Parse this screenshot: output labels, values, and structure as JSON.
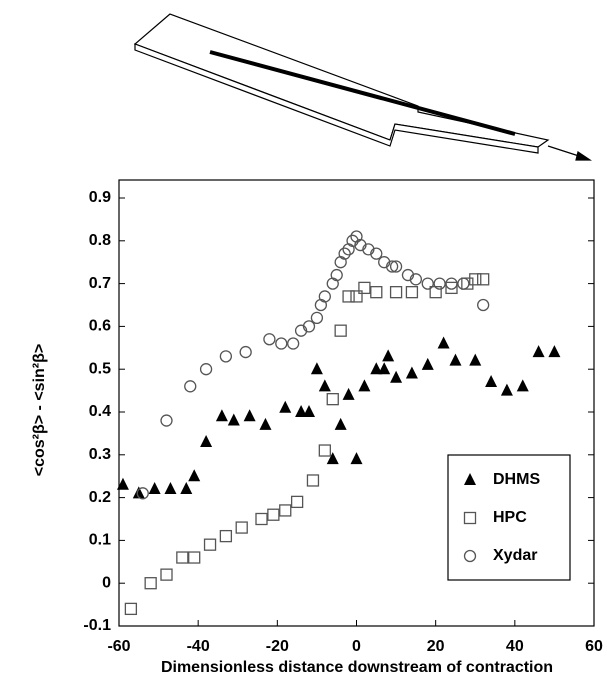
{
  "chart_data": {
    "type": "scatter",
    "x_label": "Dimensionless distance downstream of contraction",
    "y_label": "<cos²β> - <sin²β>",
    "xlim": [
      -60,
      60
    ],
    "xticks": [
      -60,
      -40,
      -20,
      0,
      20,
      40,
      60
    ],
    "ylim": [
      -0.1,
      0.9
    ],
    "yticks": [
      -0.1,
      0,
      0.1,
      0.2,
      0.3,
      0.4,
      0.5,
      0.6,
      0.7,
      0.8,
      0.9
    ],
    "legend": "lower right",
    "series": [
      {
        "name": "DHMS",
        "marker": "triangle",
        "color": "#000000",
        "x": [
          -59,
          -55,
          -51,
          -47,
          -43,
          -41,
          -38,
          -34,
          -31,
          -27,
          -23,
          -18,
          -14,
          -12,
          -10,
          -8,
          -6,
          -4,
          -2,
          0,
          2,
          5,
          7,
          8,
          10,
          14,
          18,
          22,
          25,
          30,
          34,
          38,
          42,
          46,
          50
        ],
        "values": [
          0.23,
          0.21,
          0.22,
          0.22,
          0.22,
          0.25,
          0.33,
          0.39,
          0.38,
          0.39,
          0.37,
          0.41,
          0.4,
          0.4,
          0.5,
          0.46,
          0.29,
          0.37,
          0.44,
          0.29,
          0.46,
          0.5,
          0.5,
          0.53,
          0.48,
          0.49,
          0.51,
          0.56,
          0.52,
          0.52,
          0.47,
          0.45,
          0.46,
          0.54,
          0.54
        ]
      },
      {
        "name": "HPC",
        "marker": "square",
        "color": "#555555",
        "x": [
          -57,
          -52,
          -48,
          -44,
          -41,
          -37,
          -33,
          -29,
          -24,
          -21,
          -18,
          -15,
          -11,
          -8,
          -6,
          -4,
          -2,
          0,
          2,
          5,
          10,
          14,
          20,
          24,
          28,
          30,
          32
        ],
        "values": [
          -0.06,
          0.0,
          0.02,
          0.06,
          0.06,
          0.09,
          0.11,
          0.13,
          0.15,
          0.16,
          0.17,
          0.19,
          0.24,
          0.31,
          0.43,
          0.59,
          0.67,
          0.67,
          0.69,
          0.68,
          0.68,
          0.68,
          0.68,
          0.69,
          0.7,
          0.71,
          0.71
        ]
      },
      {
        "name": "Xydar",
        "marker": "circle",
        "color": "#555555",
        "x": [
          -54,
          -48,
          -42,
          -38,
          -33,
          -28,
          -22,
          -19,
          -16,
          -14,
          -12,
          -10,
          -9,
          -8,
          -6,
          -5,
          -4,
          -3,
          -2,
          -1,
          0,
          1,
          3,
          5,
          7,
          9,
          10,
          13,
          15,
          18,
          21,
          24,
          27,
          32
        ],
        "values": [
          0.21,
          0.38,
          0.46,
          0.5,
          0.53,
          0.54,
          0.57,
          0.56,
          0.56,
          0.59,
          0.6,
          0.62,
          0.65,
          0.67,
          0.7,
          0.72,
          0.75,
          0.77,
          0.78,
          0.8,
          0.81,
          0.79,
          0.78,
          0.77,
          0.75,
          0.74,
          0.74,
          0.72,
          0.71,
          0.7,
          0.7,
          0.7,
          0.7,
          0.65
        ]
      }
    ]
  }
}
